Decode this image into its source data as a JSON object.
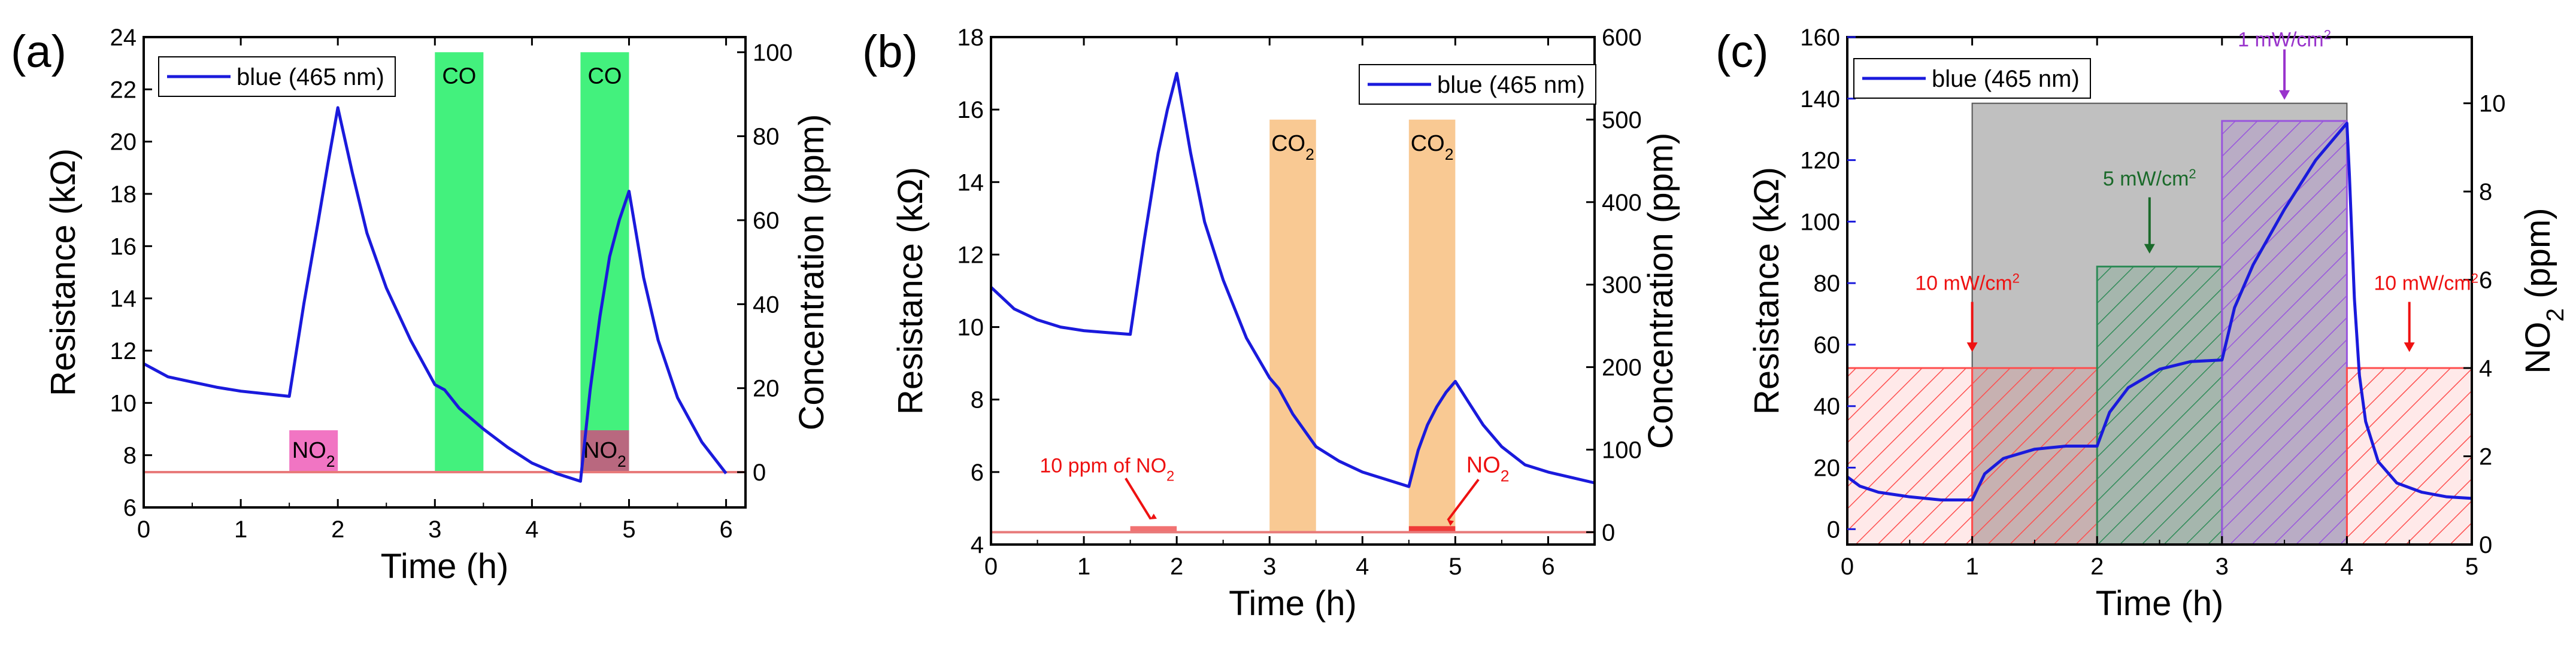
{
  "chart_data": [
    {
      "type": "line",
      "panel": "(a)",
      "xlabel": "Time (h)",
      "ylabel": "Resistance (kΩ)",
      "y2label": "Concentration (ppm)",
      "xlim": [
        0,
        6.2
      ],
      "ylim": [
        6,
        24
      ],
      "y2lim": [
        -8.4,
        103.6
      ],
      "xticks": [
        0,
        1,
        2,
        3,
        4,
        5,
        6
      ],
      "yticks": [
        6,
        8,
        10,
        12,
        14,
        16,
        18,
        20,
        22,
        24
      ],
      "y2ticks": [
        0,
        20,
        40,
        60,
        80,
        100
      ],
      "legend": "blue (465 nm)",
      "series": [
        {
          "name": "blue (465 nm)",
          "color": "#1a1adc",
          "x": [
            0,
            0.25,
            0.5,
            0.75,
            1,
            1.25,
            1.5,
            1.5,
            1.65,
            1.8,
            1.9,
            2,
            2.15,
            2.3,
            2.5,
            2.75,
            3,
            3.1,
            3.25,
            3.5,
            3.75,
            4,
            4.25,
            4.5,
            4.5,
            4.6,
            4.7,
            4.8,
            4.9,
            5,
            5.15,
            5.3,
            5.5,
            5.75,
            6
          ],
          "y": [
            11.5,
            11.0,
            10.8,
            10.6,
            10.45,
            10.35,
            10.25,
            10.25,
            13.8,
            17.0,
            19.2,
            21.3,
            18.8,
            16.5,
            14.4,
            12.4,
            10.7,
            10.5,
            9.8,
            9.0,
            8.3,
            7.7,
            7.3,
            7.0,
            7.0,
            10.5,
            13.3,
            15.6,
            17.0,
            18.1,
            14.8,
            12.4,
            10.2,
            8.5,
            7.3
          ]
        }
      ],
      "baseline": {
        "color": "#e87a7a",
        "y2": 0
      },
      "gas_pulses": [
        {
          "label": "NO₂",
          "x_start": 1.5,
          "x_end": 2.0,
          "concentration_ppm": 10,
          "color": "#f06ec0"
        },
        {
          "label": "CO",
          "x_start": 3.0,
          "x_end": 3.5,
          "concentration_ppm": 100,
          "color": "#22ee66"
        },
        {
          "label": "CO",
          "x_start": 4.5,
          "x_end": 5.0,
          "concentration_ppm": 100,
          "color": "#22ee66"
        },
        {
          "label": "NO₂",
          "x_start": 4.5,
          "x_end": 5.0,
          "concentration_ppm": 10,
          "color": "#c06080"
        }
      ]
    },
    {
      "type": "line",
      "panel": "(b)",
      "xlabel": "Time (h)",
      "ylabel": "Resistance (kΩ)",
      "y2label": "Concentration (ppm)",
      "xlim": [
        0,
        6.5
      ],
      "ylim": [
        4,
        18
      ],
      "y2lim": [
        -15,
        600
      ],
      "xticks": [
        0,
        1,
        2,
        3,
        4,
        5,
        6
      ],
      "yticks": [
        4,
        6,
        8,
        10,
        12,
        14,
        16,
        18
      ],
      "y2ticks": [
        0,
        100,
        200,
        300,
        400,
        500,
        600
      ],
      "legend": "blue (465 nm)",
      "series": [
        {
          "name": "blue (465 nm)",
          "color": "#1a1adc",
          "x": [
            0,
            0.25,
            0.5,
            0.75,
            1,
            1.25,
            1.5,
            1.5,
            1.65,
            1.8,
            1.9,
            2,
            2.15,
            2.3,
            2.5,
            2.75,
            3,
            3.1,
            3.25,
            3.5,
            3.75,
            4,
            4.25,
            4.5,
            4.5,
            4.6,
            4.7,
            4.8,
            4.9,
            5,
            5.15,
            5.3,
            5.5,
            5.75,
            6,
            6.25,
            6.5
          ],
          "y": [
            11.1,
            10.5,
            10.2,
            10.0,
            9.9,
            9.85,
            9.8,
            9.8,
            12.4,
            14.8,
            16.0,
            17.0,
            14.8,
            12.9,
            11.3,
            9.7,
            8.6,
            8.3,
            7.6,
            6.7,
            6.3,
            6.0,
            5.8,
            5.6,
            5.6,
            6.6,
            7.3,
            7.8,
            8.2,
            8.5,
            7.9,
            7.3,
            6.7,
            6.2,
            6.0,
            5.85,
            5.7
          ]
        }
      ],
      "baseline": {
        "color": "#e87a7a",
        "y2": 0
      },
      "gas_pulses": [
        {
          "label": "NO₂",
          "x_start": 1.5,
          "x_end": 2.0,
          "concentration_ppm": 10,
          "color": "#f06a6a"
        },
        {
          "label": "CO₂",
          "x_start": 3.0,
          "x_end": 3.5,
          "concentration_ppm": 500,
          "color": "#f8c080"
        },
        {
          "label": "CO₂",
          "x_start": 4.5,
          "x_end": 5.0,
          "concentration_ppm": 500,
          "color": "#f8c080"
        },
        {
          "label": "NO₂",
          "x_start": 4.5,
          "x_end": 5.0,
          "concentration_ppm": 10,
          "color": "#ee3333"
        }
      ],
      "annotations": [
        "10 ppm of NO₂",
        "NO₂"
      ]
    },
    {
      "type": "line",
      "panel": "(c)",
      "xlabel": "Time (h)",
      "ylabel": "Resistance (kΩ)",
      "y2label": "NO₂ (ppm)",
      "xlim": [
        0,
        5
      ],
      "ylim": [
        -5,
        160
      ],
      "y2lim": [
        0,
        11.5
      ],
      "xticks": [
        0,
        1,
        2,
        3,
        4,
        5
      ],
      "yticks": [
        0,
        20,
        40,
        60,
        80,
        100,
        120,
        140,
        160
      ],
      "y2ticks": [
        0,
        2,
        4,
        6,
        8,
        10
      ],
      "legend": "blue (465 nm)",
      "series": [
        {
          "name": "blue (465 nm)",
          "color": "#1a1adc",
          "x": [
            0,
            0.1,
            0.25,
            0.5,
            0.75,
            1,
            1,
            1.1,
            1.25,
            1.5,
            1.75,
            2,
            2,
            2.1,
            2.25,
            2.5,
            2.75,
            3,
            3,
            3.1,
            3.25,
            3.5,
            3.75,
            4,
            4.02,
            4.06,
            4.1,
            4.15,
            4.25,
            4.4,
            4.6,
            4.8,
            5
          ],
          "y": [
            17,
            14,
            12,
            10.5,
            9.5,
            9.5,
            9.5,
            18,
            23,
            26,
            27,
            27,
            27,
            38,
            46,
            52,
            54.5,
            55,
            55,
            72,
            86,
            104,
            120,
            132,
            115,
            75,
            50,
            35,
            22,
            15,
            12,
            10.5,
            10
          ]
        }
      ],
      "no2_steps": [
        {
          "x_start": 0,
          "x_end": 1,
          "concentration_ppm": 4,
          "color": "#ff4d4d"
        },
        {
          "x_start": 1,
          "x_end": 2,
          "concentration_ppm": 4,
          "color": "#ff4d4d"
        },
        {
          "x_start": 2,
          "x_end": 3,
          "concentration_ppm": 6.3,
          "color": "#2e8b57"
        },
        {
          "x_start": 3,
          "x_end": 4,
          "concentration_ppm": 9.6,
          "color": "#9955dd"
        },
        {
          "x_start": 4,
          "x_end": 5,
          "concentration_ppm": 4,
          "color": "#ff4d4d"
        }
      ],
      "light_on_region": {
        "x_start": 1,
        "x_end": 4,
        "level_ppm": 10,
        "color": "#c0c0c0"
      },
      "annotations": [
        {
          "text": "10 mW/cm²",
          "x": 1,
          "color": "#ee1111"
        },
        {
          "text": "5 mW/cm²",
          "x": 2.42,
          "color": "#1a6a2a"
        },
        {
          "text": "1 mW/cm²",
          "x": 3.5,
          "color": "#9933cc"
        },
        {
          "text": "10 mW/cm²",
          "x": 4.5,
          "color": "#ee1111"
        }
      ]
    }
  ]
}
